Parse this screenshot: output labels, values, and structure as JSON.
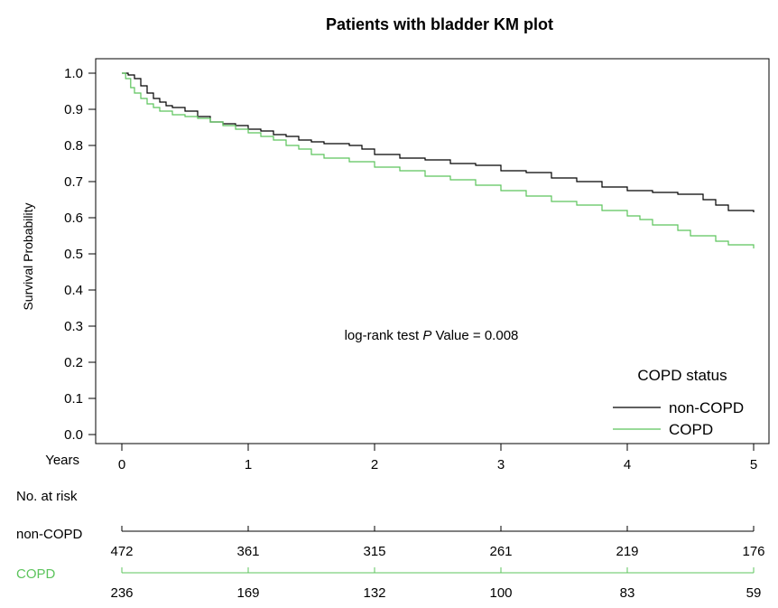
{
  "chart_data": {
    "type": "line",
    "title": "Patients with bladder KM plot",
    "ylabel": "Survival Probability",
    "xlabel": "Years",
    "xlim": [
      0,
      5
    ],
    "ylim": [
      0,
      1
    ],
    "x_ticks": [
      "0",
      "1",
      "2",
      "3",
      "4",
      "5"
    ],
    "y_ticks": [
      "0.0",
      "0.1",
      "0.2",
      "0.3",
      "0.4",
      "0.5",
      "0.6",
      "0.7",
      "0.8",
      "0.9",
      "1.0"
    ],
    "grid": false,
    "annotation": {
      "prefix": "log-rank test ",
      "italic": "P",
      "suffix": " Value = 0.008"
    },
    "legend": {
      "title": "COPD status",
      "placement": "bottom-right"
    },
    "series": [
      {
        "name": "non-COPD",
        "color": "#000000",
        "points": [
          [
            0,
            1.0
          ],
          [
            0.05,
            0.995
          ],
          [
            0.1,
            0.985
          ],
          [
            0.15,
            0.965
          ],
          [
            0.2,
            0.945
          ],
          [
            0.25,
            0.93
          ],
          [
            0.3,
            0.92
          ],
          [
            0.35,
            0.91
          ],
          [
            0.4,
            0.905
          ],
          [
            0.5,
            0.895
          ],
          [
            0.6,
            0.88
          ],
          [
            0.7,
            0.865
          ],
          [
            0.8,
            0.86
          ],
          [
            0.9,
            0.855
          ],
          [
            1.0,
            0.845
          ],
          [
            1.1,
            0.84
          ],
          [
            1.2,
            0.83
          ],
          [
            1.3,
            0.825
          ],
          [
            1.4,
            0.815
          ],
          [
            1.5,
            0.81
          ],
          [
            1.6,
            0.805
          ],
          [
            1.8,
            0.8
          ],
          [
            1.9,
            0.79
          ],
          [
            2.0,
            0.775
          ],
          [
            2.2,
            0.765
          ],
          [
            2.4,
            0.76
          ],
          [
            2.6,
            0.75
          ],
          [
            2.8,
            0.745
          ],
          [
            3.0,
            0.73
          ],
          [
            3.2,
            0.725
          ],
          [
            3.4,
            0.71
          ],
          [
            3.6,
            0.7
          ],
          [
            3.8,
            0.685
          ],
          [
            4.0,
            0.675
          ],
          [
            4.2,
            0.67
          ],
          [
            4.4,
            0.665
          ],
          [
            4.6,
            0.65
          ],
          [
            4.7,
            0.635
          ],
          [
            4.8,
            0.62
          ],
          [
            5.0,
            0.615
          ]
        ]
      },
      {
        "name": "COPD",
        "color": "#5cc45c",
        "points": [
          [
            0,
            1.0
          ],
          [
            0.03,
            0.985
          ],
          [
            0.07,
            0.96
          ],
          [
            0.1,
            0.945
          ],
          [
            0.15,
            0.93
          ],
          [
            0.2,
            0.915
          ],
          [
            0.25,
            0.905
          ],
          [
            0.3,
            0.895
          ],
          [
            0.4,
            0.885
          ],
          [
            0.5,
            0.88
          ],
          [
            0.6,
            0.875
          ],
          [
            0.7,
            0.865
          ],
          [
            0.8,
            0.855
          ],
          [
            0.9,
            0.845
          ],
          [
            1.0,
            0.835
          ],
          [
            1.1,
            0.825
          ],
          [
            1.2,
            0.815
          ],
          [
            1.3,
            0.8
          ],
          [
            1.4,
            0.79
          ],
          [
            1.5,
            0.775
          ],
          [
            1.6,
            0.765
          ],
          [
            1.8,
            0.755
          ],
          [
            2.0,
            0.74
          ],
          [
            2.2,
            0.73
          ],
          [
            2.4,
            0.715
          ],
          [
            2.6,
            0.705
          ],
          [
            2.8,
            0.69
          ],
          [
            3.0,
            0.675
          ],
          [
            3.2,
            0.66
          ],
          [
            3.4,
            0.645
          ],
          [
            3.6,
            0.635
          ],
          [
            3.8,
            0.62
          ],
          [
            4.0,
            0.605
          ],
          [
            4.1,
            0.595
          ],
          [
            4.2,
            0.58
          ],
          [
            4.4,
            0.565
          ],
          [
            4.5,
            0.55
          ],
          [
            4.7,
            0.535
          ],
          [
            4.8,
            0.525
          ],
          [
            5.0,
            0.515
          ]
        ]
      }
    ],
    "risk_table": {
      "title": "No. at risk",
      "rows": [
        {
          "name": "non-COPD",
          "color": "#000000",
          "values": [
            "472",
            "361",
            "315",
            "261",
            "219",
            "176"
          ]
        },
        {
          "name": "COPD",
          "color": "#5cc45c",
          "values": [
            "236",
            "169",
            "132",
            "100",
            "83",
            "59"
          ]
        }
      ]
    }
  }
}
